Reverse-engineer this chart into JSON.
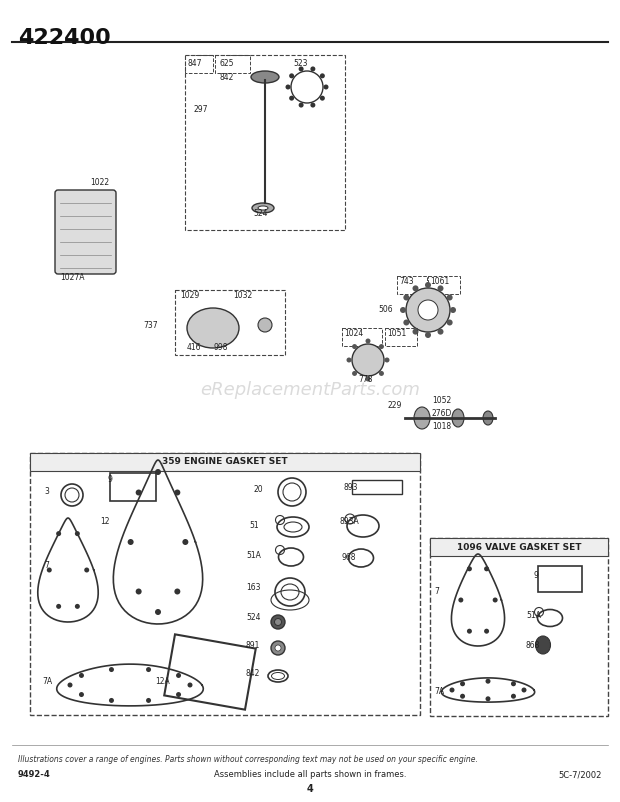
{
  "title": "422400",
  "bg_color": "#ffffff",
  "page_number": "4",
  "left_code": "9492-4",
  "center_footer": "Assemblies include all parts shown in frames.",
  "right_code": "5C-7/2002",
  "italic_note": "Illustrations cover a range of engines. Parts shown without corresponding text may not be used on your specific engine.",
  "watermark": "eReplacementParts.com",
  "engine_gasket_label": "359 ENGINE GASKET SET",
  "valve_gasket_label": "1096 VALVE GASKET SET"
}
